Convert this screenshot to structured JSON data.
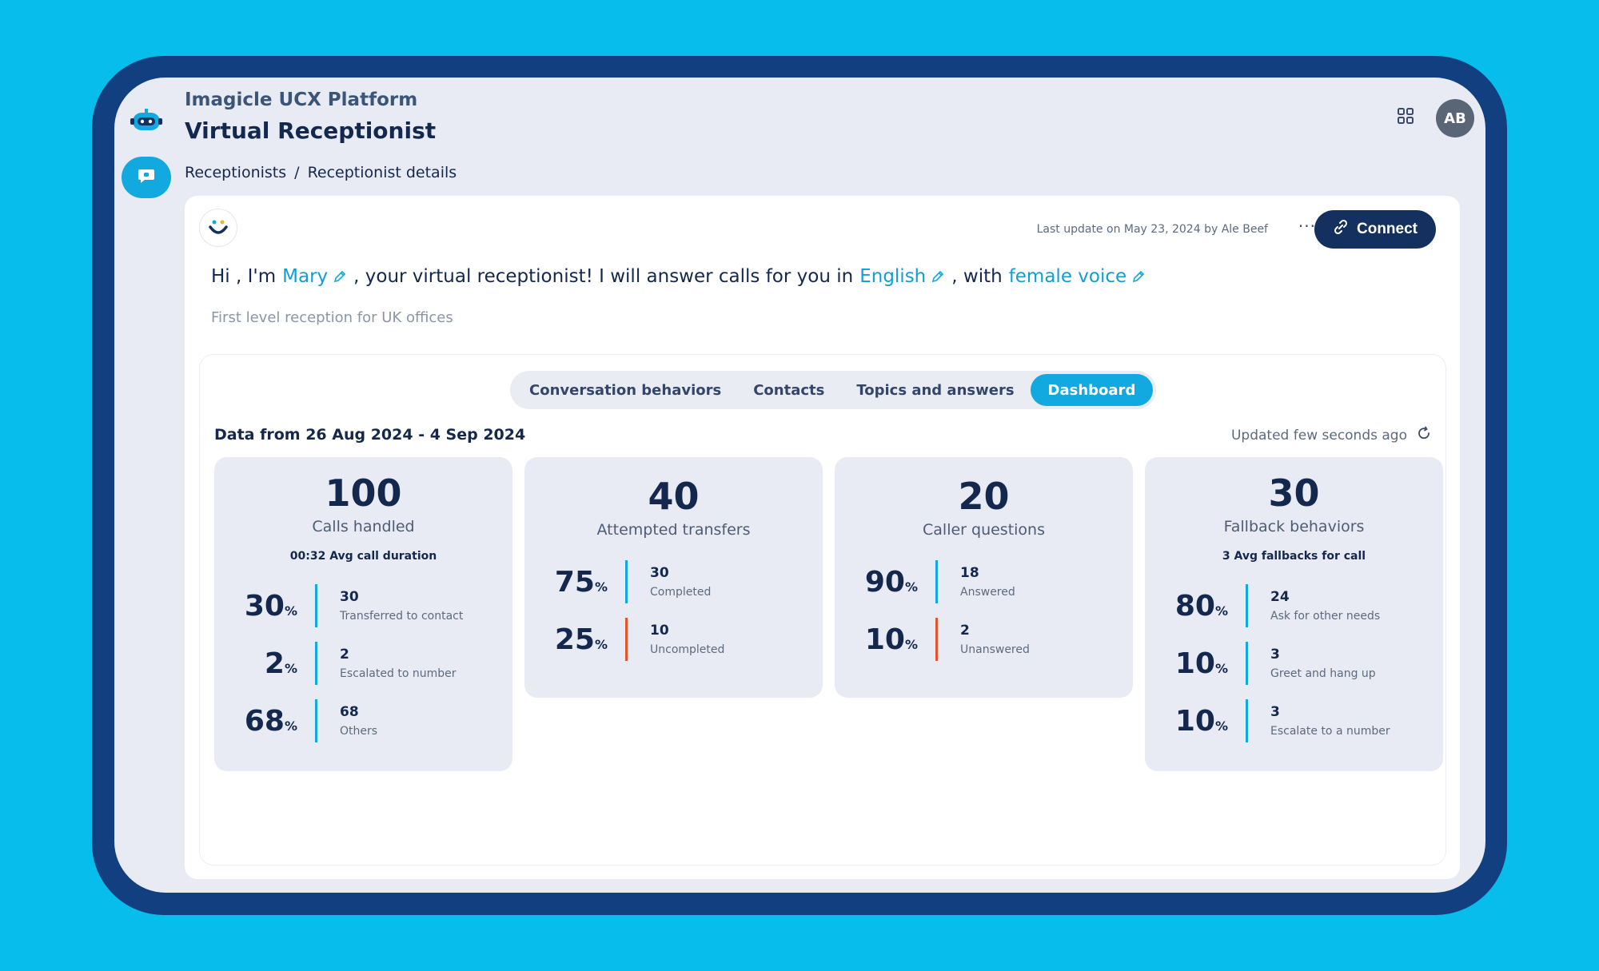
{
  "header": {
    "app_name": "Imagicle UCX Platform",
    "page_title": "Virtual Receptionist",
    "breadcrumb": [
      "Receptionists",
      "/",
      "Receptionist details"
    ],
    "avatar_initials": "AB"
  },
  "card": {
    "last_update": "Last update on May 23, 2024 by Ale Beef",
    "more_label": "···",
    "connect_label": "Connect",
    "intro": {
      "part1": "Hi , I'm",
      "name": "Mary",
      "part2": ", your virtual receptionist! I will answer calls for you in",
      "language": "English",
      "part3": ", with",
      "voice": "female voice"
    },
    "description": "First level reception for UK offices"
  },
  "tabs": [
    "Conversation behaviors",
    "Contacts",
    "Topics and answers",
    "Dashboard"
  ],
  "active_tab": "Dashboard",
  "dashboard": {
    "date_range": "Data from 26 Aug  2024 - 4 Sep 2024",
    "updated": "Updated few seconds ago",
    "cards": [
      {
        "value": "100",
        "caption": "Calls handled",
        "sub": "00:32 Avg call duration",
        "rows": [
          {
            "pct": "30",
            "count": "30",
            "label": "Transferred to contact"
          },
          {
            "pct": "2",
            "count": "2",
            "label": "Escalated to number"
          },
          {
            "pct": "68",
            "count": "68",
            "label": "Others"
          }
        ]
      },
      {
        "value": "40",
        "caption": "Attempted transfers",
        "rows": [
          {
            "pct": "75",
            "count": "30",
            "label": "Completed"
          },
          {
            "pct": "25",
            "count": "10",
            "label": "Uncompleted"
          }
        ]
      },
      {
        "value": "20",
        "caption": "Caller questions",
        "rows": [
          {
            "pct": "90",
            "count": "18",
            "label": "Answered"
          },
          {
            "pct": "10",
            "count": "2",
            "label": "Unanswered"
          }
        ]
      },
      {
        "value": "30",
        "caption": "Fallback behaviors",
        "sub": "3 Avg fallbacks for call",
        "rows": [
          {
            "pct": "80",
            "count": "24",
            "label": "Ask for other needs"
          },
          {
            "pct": "10",
            "count": "3",
            "label": "Greet and hang up"
          },
          {
            "pct": "10",
            "count": "3",
            "label": "Escalate to a number"
          }
        ]
      }
    ],
    "percent_sign": "%"
  },
  "colors": {
    "background": "#06bdec",
    "frame": "#123f80",
    "accent": "#11a9df",
    "navy": "#14284d",
    "negative": "#e0552b"
  },
  "icons": [
    "robot-logo-icon",
    "chat-bubble-icon",
    "apps-grid-icon",
    "smile-bot-icon",
    "pencil-icon",
    "link-icon",
    "refresh-icon"
  ]
}
